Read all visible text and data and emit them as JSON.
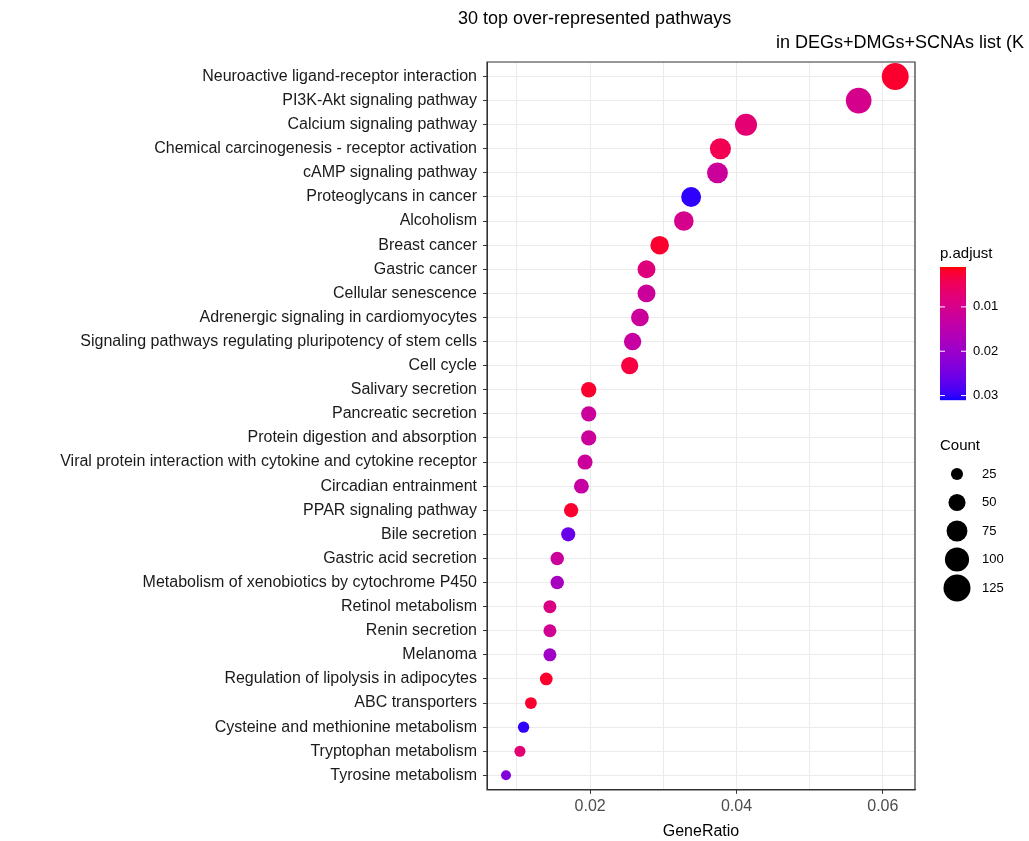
{
  "chart_data": {
    "type": "bubble",
    "orientation": "horizontal",
    "title": "30 top over-represented pathways\n    in DEGs+DMGs+SCNAs list (K",
    "xlabel": "GeneRatio",
    "clabel": "p.adjust",
    "legend_title": "Count",
    "categories": [
      "Neuroactive ligand-receptor interaction",
      "PI3K-Akt signaling pathway",
      "Calcium signaling pathway",
      "Chemical carcinogenesis - receptor activation",
      "cAMP signaling pathway",
      "Proteoglycans in cancer",
      "Alcoholism",
      "Breast cancer",
      "Gastric cancer",
      "Cellular senescence",
      "Adrenergic signaling in cardiomyocytes",
      "Signaling pathways regulating pluripotency of stem cells",
      "Cell cycle",
      "Salivary secretion",
      "Pancreatic secretion",
      "Protein digestion and absorption",
      "Viral protein interaction with cytokine and cytokine receptor",
      "Circadian entrainment",
      "PPAR signaling pathway",
      "Bile secretion",
      "Gastric acid secretion",
      "Metabolism of xenobiotics by cytochrome P450",
      "Retinol metabolism",
      "Renin secretion",
      "Melanoma",
      "Regulation of lipolysis in adipocytes",
      "ABC transporters",
      "Cysteine and methionine metabolism",
      "Tryptophan metabolism",
      "Tyrosine metabolism"
    ],
    "values": [
      0.0617,
      0.0567,
      0.0413,
      0.0378,
      0.0374,
      0.0338,
      0.0328,
      0.0295,
      0.0277,
      0.0277,
      0.0268,
      0.0258,
      0.0254,
      0.0198,
      0.0198,
      0.0198,
      0.0193,
      0.0188,
      0.0174,
      0.017,
      0.0155,
      0.0155,
      0.0145,
      0.0145,
      0.0145,
      0.014,
      0.0119,
      0.0109,
      0.0104,
      0.0085
    ],
    "sizes": [
      124,
      113,
      83,
      76,
      75,
      68,
      66,
      59,
      55,
      55,
      54,
      52,
      51,
      40,
      40,
      40,
      39,
      38,
      35,
      34,
      31,
      31,
      29,
      29,
      29,
      28,
      24,
      22,
      21,
      17
    ],
    "size_legend": [
      25,
      50,
      75,
      100,
      125
    ],
    "cvalues": [
      0.002,
      0.01,
      0.007,
      0.004,
      0.012,
      0.03,
      0.01,
      0.002,
      0.008,
      0.012,
      0.012,
      0.013,
      0.003,
      0.002,
      0.012,
      0.012,
      0.012,
      0.013,
      0.002,
      0.026,
      0.012,
      0.018,
      0.009,
      0.011,
      0.019,
      0.002,
      0.002,
      0.03,
      0.007,
      0.023
    ],
    "clim": [
      0.001,
      0.031
    ],
    "cticks": [
      0.01,
      0.02,
      0.03
    ],
    "xlim": [
      0.0059,
      0.0644
    ],
    "xticks": [
      {
        "value": 0.01,
        "label": null
      },
      0.02,
      {
        "value": 0.03,
        "label": null
      },
      0.04,
      {
        "value": 0.05,
        "label": null
      },
      0.06
    ],
    "grid": true
  }
}
